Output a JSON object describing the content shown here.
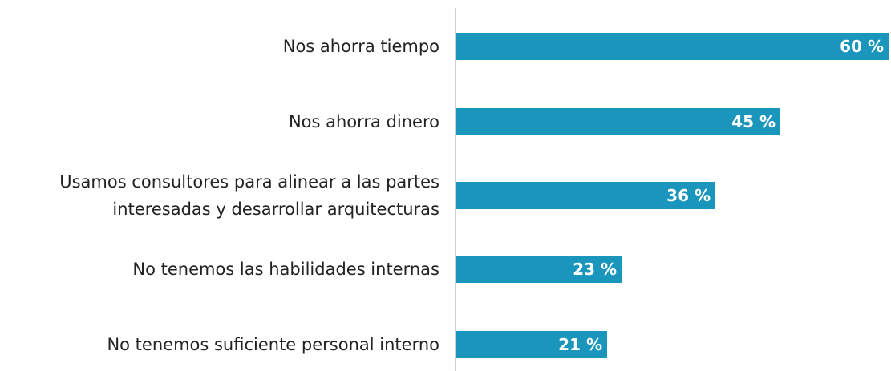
{
  "chart_data": {
    "type": "bar",
    "orientation": "horizontal",
    "categories": [
      "Nos ahorra tiempo",
      "Nos ahorra dinero",
      "Usamos consultores para alinear a las partes interesadas y desarrollar arquitecturas",
      "No tenemos las habilidades internas",
      "No tenemos suficiente personal interno"
    ],
    "values": [
      60,
      45,
      36,
      23,
      21
    ],
    "value_labels": [
      "60 %",
      "45 %",
      "36 %",
      "23 %",
      "21 %"
    ],
    "color": "#1a96bd",
    "xlim": [
      0,
      60
    ]
  }
}
